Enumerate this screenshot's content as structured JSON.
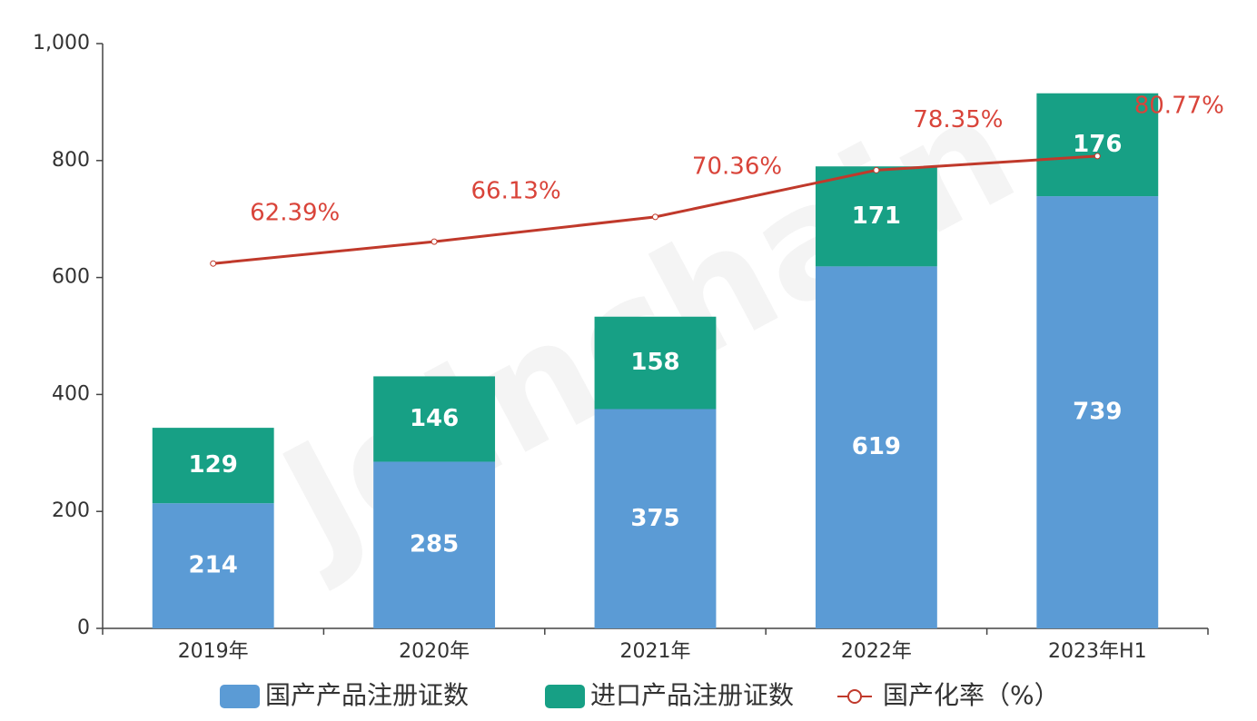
{
  "chart_data": {
    "type": "bar_line",
    "watermark": "Joinchain",
    "categories": [
      "2019年",
      "2020年",
      "2021年",
      "2022年",
      "2023年H1"
    ],
    "series": [
      {
        "name": "国产产品注册证数",
        "type": "bar",
        "color": "#5b9bd5",
        "values": [
          214,
          285,
          375,
          619,
          739
        ]
      },
      {
        "name": "进口产品注册证数",
        "type": "bar",
        "color": "#17a085",
        "values": [
          129,
          146,
          158,
          171,
          176
        ]
      },
      {
        "name": "国产化率（%）",
        "type": "line",
        "axis": "y2",
        "color": "#c0392b",
        "values": [
          62.39,
          66.13,
          70.36,
          78.35,
          80.77
        ],
        "value_labels": [
          "62.39%",
          "66.13%",
          "70.36%",
          "78.35%",
          "80.77%"
        ]
      }
    ],
    "ylim": [
      0,
      1000
    ],
    "yticks": [
      0,
      200,
      400,
      600,
      800,
      {
        "value": 1000,
        "label": "1,000"
      }
    ],
    "y2lim": [
      0,
      100
    ],
    "stacked": true,
    "grid": false,
    "legend": "bottom"
  }
}
